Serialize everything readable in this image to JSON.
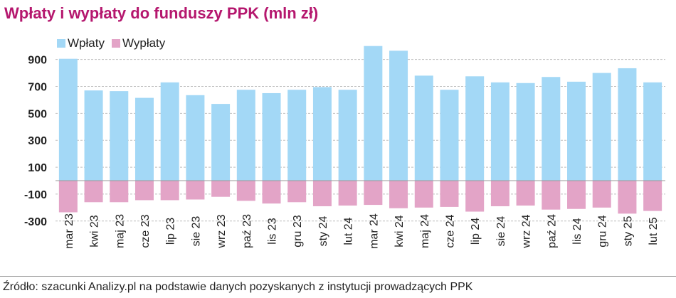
{
  "colors": {
    "inflow": "#a3d8f6",
    "outflow": "#e3a4c7",
    "title": "#b5176e",
    "grid": "#bfbfbf"
  },
  "chart_data": {
    "type": "bar",
    "title": "Wpłaty i wypłaty do funduszy PPK (mln zł)",
    "source": "Źródło: szacunki Analizy.pl na podstawie danych pozyskanych z instytucji prowadzących PPK",
    "categories": [
      "mar 23",
      "kwi 23",
      "maj 23",
      "cze 23",
      "lip 23",
      "sie 23",
      "wrz 23",
      "paź 23",
      "lis 23",
      "gru 23",
      "sty 24",
      "lut 24",
      "mar 24",
      "kwi 24",
      "maj 24",
      "cze 24",
      "lip 24",
      "sie 24",
      "wrz 24",
      "paź 24",
      "lis 24",
      "gru 24",
      "sty 25",
      "lut 25"
    ],
    "series": [
      {
        "name": "Wpłaty",
        "values": [
          905,
          670,
          665,
          615,
          730,
          635,
          570,
          675,
          650,
          675,
          695,
          675,
          1000,
          965,
          780,
          675,
          775,
          730,
          725,
          770,
          735,
          800,
          835,
          730
        ]
      },
      {
        "name": "Wypłaty",
        "values": [
          -235,
          -160,
          -160,
          -145,
          -145,
          -140,
          -120,
          -150,
          -170,
          -160,
          -190,
          -185,
          -180,
          -205,
          -200,
          -195,
          -230,
          -190,
          -185,
          -215,
          -210,
          -200,
          -245,
          -225
        ]
      }
    ],
    "y_ticks": [
      900,
      700,
      500,
      300,
      100,
      -100,
      -300
    ],
    "ylim": [
      -300,
      1000
    ],
    "stacked": true,
    "grid": true,
    "legend": "top-left"
  }
}
